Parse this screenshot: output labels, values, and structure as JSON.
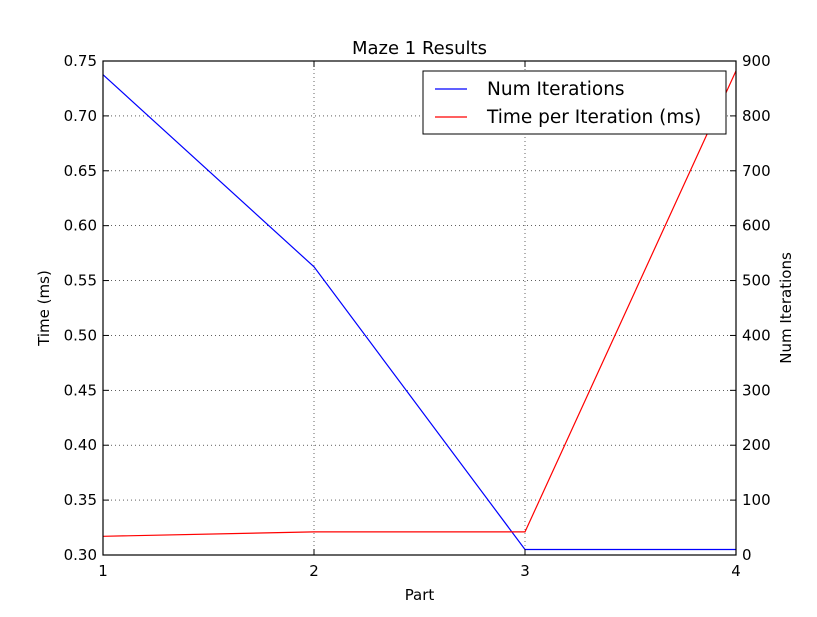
{
  "chart_data": {
    "type": "line",
    "title": "Maze 1 Results",
    "xlabel": "Part",
    "ylabel_left": "Time (ms)",
    "ylabel_right": "Num Iterations",
    "x": [
      1,
      2,
      3,
      4
    ],
    "xlim": [
      1,
      4
    ],
    "x_ticks": [
      "1",
      "2",
      "3",
      "4"
    ],
    "ylim_left": [
      0.3,
      0.75
    ],
    "y_left_ticks": [
      "0.30",
      "0.35",
      "0.40",
      "0.45",
      "0.50",
      "0.55",
      "0.60",
      "0.65",
      "0.70",
      "0.75"
    ],
    "ylim_right": [
      0,
      900
    ],
    "y_right_ticks": [
      "0",
      "100",
      "200",
      "300",
      "400",
      "500",
      "600",
      "700",
      "800",
      "900"
    ],
    "grid": true,
    "legend_position": "upper right",
    "series": [
      {
        "name": "Num Iterations",
        "axis": "right",
        "color": "#0000ff",
        "values": [
          875,
          525,
          10,
          10
        ]
      },
      {
        "name": "Time per Iteration (ms)",
        "axis": "left",
        "color": "#ff0000",
        "values": [
          0.317,
          0.321,
          0.321,
          0.741
        ]
      }
    ]
  }
}
